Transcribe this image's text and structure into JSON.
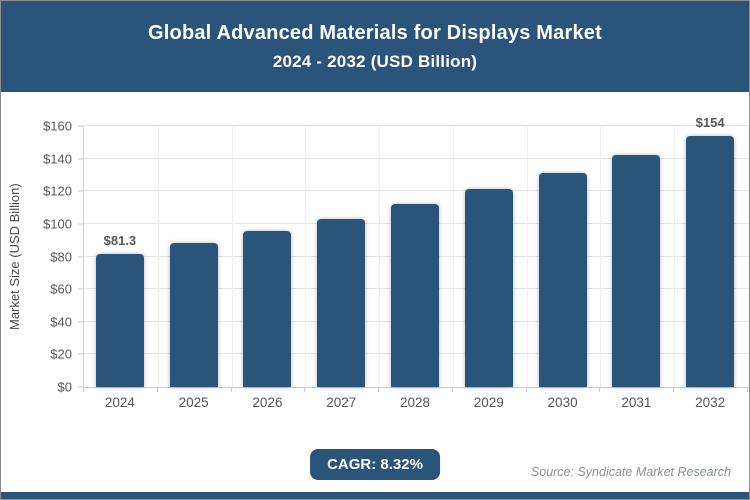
{
  "header": {
    "title_line1": "Global Advanced Materials for Displays Market",
    "title_line2": "2024 - 2032 (USD Billion)"
  },
  "chart_data": {
    "type": "bar",
    "title": "Global Advanced Materials for Displays Market 2024 - 2032 (USD Billion)",
    "categories": [
      "2024",
      "2025",
      "2026",
      "2027",
      "2028",
      "2029",
      "2030",
      "2031",
      "2032"
    ],
    "values": [
      81.3,
      88.1,
      95.4,
      103.3,
      111.9,
      121.2,
      131.3,
      142.2,
      154
    ],
    "point_labels": [
      "$81.3",
      "",
      "",
      "",
      "",
      "",
      "",
      "",
      "$154"
    ],
    "xlabel": "",
    "ylabel": "Market Size (USD Billion)",
    "ylim": [
      0,
      160
    ],
    "ytick_step": 20,
    "ytick_labels": [
      "$0",
      "$20",
      "$40",
      "$60",
      "$80",
      "$100",
      "$120",
      "$140",
      "$160"
    ],
    "grid": true,
    "legend": false
  },
  "footer": {
    "cagr_label": "CAGR: 8.32%",
    "source": "Source: Syndicate Market Research"
  },
  "colors": {
    "brand_blue": "#2a547a",
    "bar": "#2a547a",
    "gridline": "#e4e4e4",
    "tick_text": "#595959",
    "source_text": "#8a9096"
  }
}
